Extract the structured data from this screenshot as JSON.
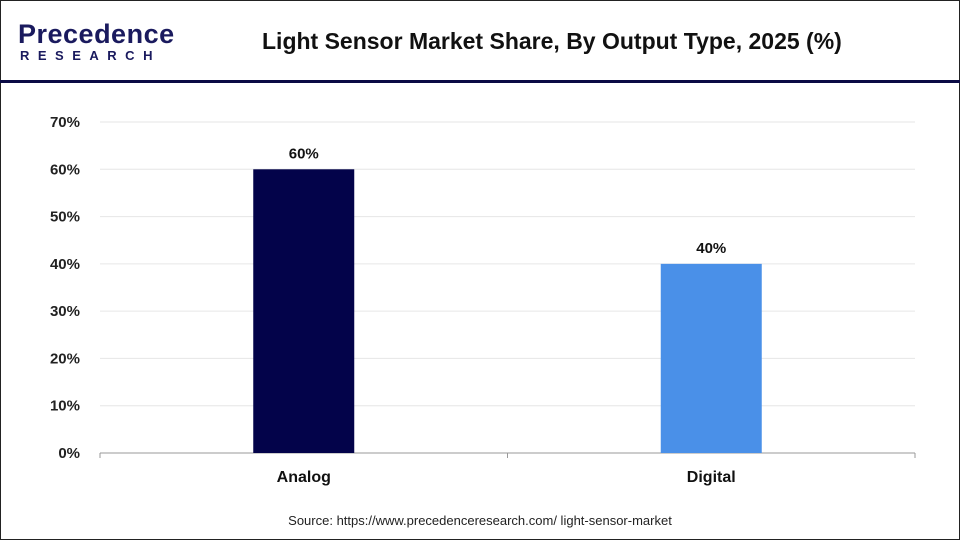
{
  "logo": {
    "line1": "Precedence",
    "line2": "RESEARCH"
  },
  "header": {
    "title": "Light Sensor Market Share, By Output Type, 2025 (%)"
  },
  "source": "Source: https://www.precedenceresearch.com/ light-sensor-market",
  "chart_data": {
    "type": "bar",
    "title": "Light Sensor Market Share, By Output Type, 2025 (%)",
    "categories": [
      "Analog",
      "Digital"
    ],
    "values": [
      60,
      40
    ],
    "data_labels": [
      "60%",
      "40%"
    ],
    "colors": [
      "#03034a",
      "#4a90e8"
    ],
    "ylim": [
      0,
      70
    ],
    "yticks": [
      0,
      10,
      20,
      30,
      40,
      50,
      60,
      70
    ],
    "ytick_labels": [
      "0%",
      "10%",
      "20%",
      "30%",
      "40%",
      "50%",
      "60%",
      "70%"
    ],
    "grid": true,
    "xlabel": "",
    "ylabel": ""
  }
}
